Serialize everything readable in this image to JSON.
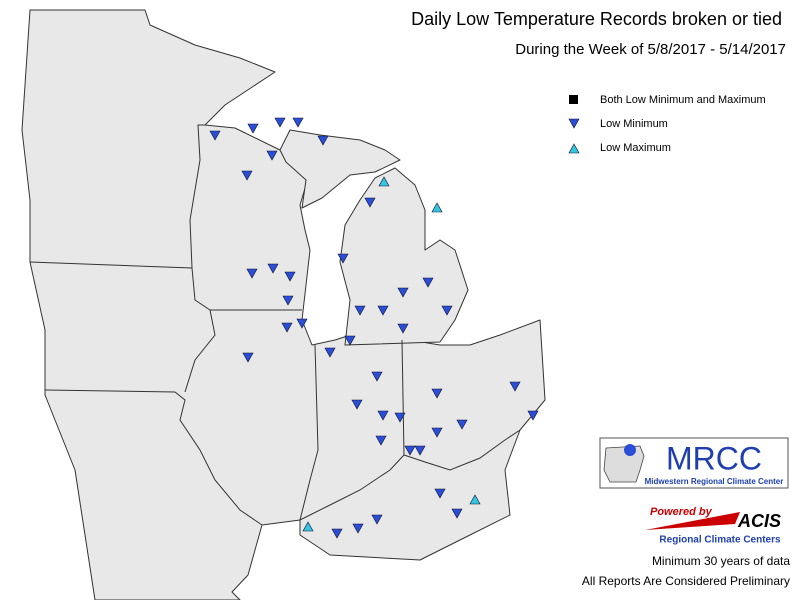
{
  "header": {
    "title": "Daily Low Temperature Records broken or tied",
    "subtitle": "During the Week of 5/8/2017 - 5/14/2017"
  },
  "legend": {
    "items": [
      "Both Low Minimum and Maximum",
      "Low Minimum",
      "Low Maximum"
    ]
  },
  "logos": {
    "mrcc": "MRCC",
    "mrcc_name": "Midwestern Regional Climate Center",
    "powered_by": "Powered by",
    "acis": "ACIS",
    "acis_name": "Regional Climate Centers"
  },
  "footer": {
    "note": "Minimum 30 years of data",
    "disclaimer": "All Reports Are Considered Preliminary"
  }
}
